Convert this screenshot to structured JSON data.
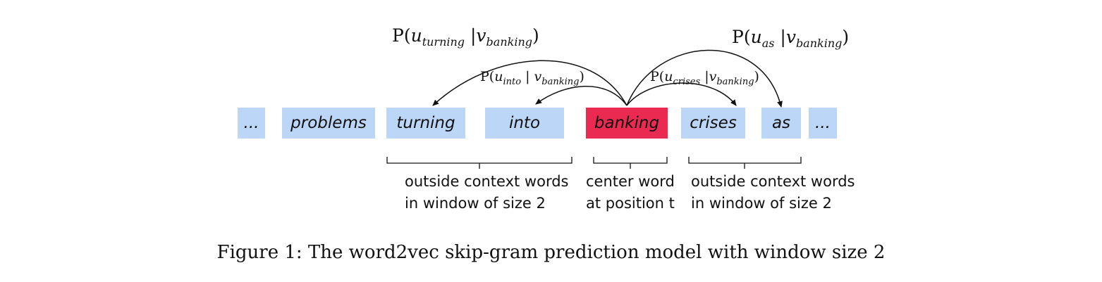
{
  "tokens": [
    "...",
    "problems",
    "turning",
    "into",
    "banking",
    "crises",
    "as",
    "..."
  ],
  "probabilities": {
    "turning": {
      "prefix": "P(",
      "u": "u",
      "u_sub": "turning",
      "sep": " |",
      "v": "v",
      "v_sub": "banking",
      "suffix": ")"
    },
    "into": {
      "prefix": "P(",
      "u": "u",
      "u_sub": "into",
      "sep": " | ",
      "v": "v",
      "v_sub": "banking",
      "suffix": ")"
    },
    "crises": {
      "prefix": "P(",
      "u": "u",
      "u_sub": "crises",
      "sep": " |",
      "v": "v",
      "v_sub": "banking",
      "suffix": ")"
    },
    "as": {
      "prefix": "P(",
      "u": "u",
      "u_sub": "as",
      "sep": " |",
      "v": "v",
      "v_sub": "banking",
      "suffix": ")"
    }
  },
  "labels": {
    "left_context": [
      "outside context words",
      "in window of size 2"
    ],
    "center": [
      "center word",
      "at position t"
    ],
    "right_context": [
      "outside context words",
      "in window of size 2"
    ]
  },
  "caption": "Figure 1: The word2vec skip-gram prediction model with window size 2",
  "colors": {
    "context_box": "#bcd6f7",
    "center_box": "#eb2a52"
  }
}
